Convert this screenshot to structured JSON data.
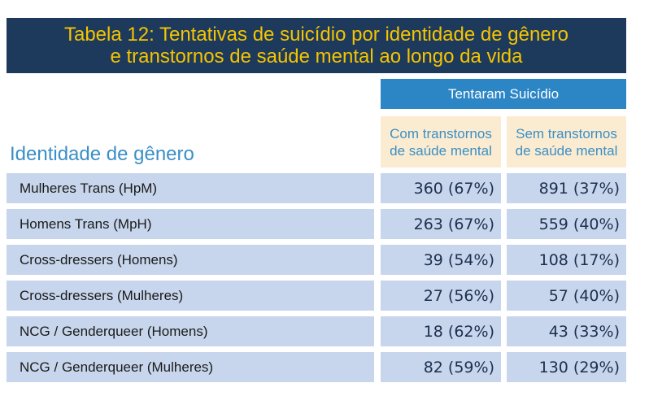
{
  "title": {
    "line1": "Tabela 12: Tentativas de suicídio por identidade de gênero",
    "line2": "e transtornos de saúde mental ao longo da vida"
  },
  "table": {
    "group_header": "Tentaram Suicídio",
    "row_header": "Identidade de gênero",
    "columns": [
      {
        "line1": "Com transtornos",
        "line2": "de saúde mental"
      },
      {
        "line1": "Sem transtornos",
        "line2": "de saúde mental"
      }
    ],
    "rows": [
      {
        "label": "Mulheres Trans (HpM)",
        "v1": "360 (67%)",
        "v2": "891 (37%)"
      },
      {
        "label": "Homens Trans (MpH)",
        "v1": "263 (67%)",
        "v2": "559 (40%)"
      },
      {
        "label": "Cross-dressers (Homens)",
        "v1": "39 (54%)",
        "v2": "108 (17%)"
      },
      {
        "label": "Cross-dressers (Mulheres)",
        "v1": "27 (56%)",
        "v2": "57 (40%)"
      },
      {
        "label": "NCG / Genderqueer (Homens)",
        "v1": "18 (62%)",
        "v2": "43 (33%)"
      },
      {
        "label": "NCG / Genderqueer (Mulheres)",
        "v1": "82 (59%)",
        "v2": "130 (29%)"
      }
    ]
  }
}
